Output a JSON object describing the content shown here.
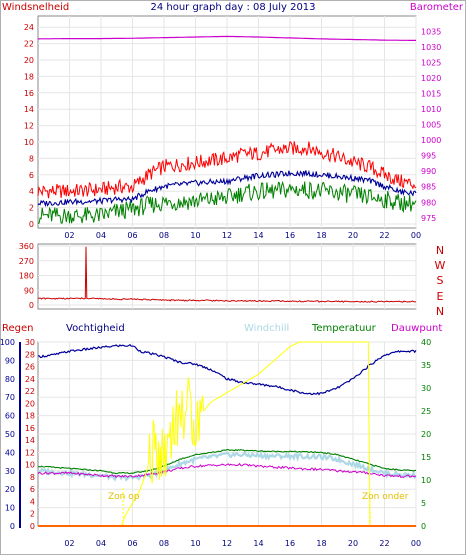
{
  "chart_data": [
    {
      "type": "line",
      "panel": "wind-and-barometer",
      "title": "24 hour graph day : 08 July 2013",
      "left_axis_label": "Windsnelheid",
      "right_axis_label": "Barometer",
      "hour_labels": [
        "02",
        "04",
        "06",
        "08",
        "10",
        "12",
        "14",
        "16",
        "18",
        "20",
        "22",
        "00"
      ],
      "left_ylim": [
        0,
        25
      ],
      "left_ticks": [
        0,
        2,
        4,
        6,
        8,
        10,
        12,
        14,
        16,
        18,
        20,
        22,
        24
      ],
      "right_ylim": [
        973,
        1039
      ],
      "right_ticks": [
        975,
        980,
        985,
        990,
        995,
        1000,
        1005,
        1010,
        1015,
        1020,
        1025,
        1030,
        1035
      ],
      "colors": {
        "gust": "#ff0000",
        "avg": "#000099",
        "min": "#008000",
        "baro": "#cc00cc",
        "axis_left": "#cc0000",
        "axis_right": "#cc00cc",
        "title": "#000080"
      },
      "series": [
        {
          "key": "gust",
          "x": [
            0,
            2,
            4,
            5,
            6,
            7,
            8,
            10,
            12,
            13,
            14,
            15,
            16,
            17,
            18,
            19,
            20,
            21,
            22,
            23,
            24
          ],
          "values": [
            4,
            4,
            4.2,
            4.5,
            4.5,
            6,
            7,
            7.5,
            8,
            8.5,
            8.6,
            9,
            9.2,
            9.3,
            8.8,
            8.2,
            7.5,
            7,
            6,
            5.2,
            4.8
          ]
        },
        {
          "key": "avg",
          "x": [
            0,
            2,
            4,
            5,
            6,
            7,
            8,
            10,
            12,
            13,
            14,
            15,
            16,
            17,
            18,
            19,
            20,
            21,
            22,
            23,
            24
          ],
          "values": [
            2.5,
            2.7,
            2.8,
            3,
            3,
            4,
            4.6,
            5,
            5.2,
            5.6,
            5.9,
            6,
            6.2,
            6.2,
            6,
            5.8,
            5.6,
            5.3,
            4.6,
            3.9,
            3.7
          ]
        },
        {
          "key": "min",
          "x": [
            0,
            2,
            4,
            5,
            6,
            7,
            8,
            10,
            12,
            13,
            14,
            15,
            16,
            17,
            18,
            19,
            20,
            21,
            22,
            23,
            24
          ],
          "values": [
            1,
            1,
            1,
            1.5,
            1.8,
            2.3,
            2.6,
            2.8,
            3.2,
            3.8,
            3.9,
            4,
            4.2,
            4.2,
            4,
            3.8,
            3.6,
            3.3,
            3,
            2.6,
            2.5
          ]
        },
        {
          "key": "baro",
          "x": [
            0,
            2,
            4,
            6,
            8,
            10,
            12,
            14,
            16,
            18,
            20,
            22,
            24
          ],
          "values": [
            1032.6,
            1032.7,
            1032.7,
            1032.8,
            1033,
            1033.2,
            1033.4,
            1033.2,
            1032.9,
            1032.6,
            1032.4,
            1032.2,
            1032.1
          ]
        }
      ]
    },
    {
      "type": "line",
      "panel": "wind-direction",
      "hour_labels": [
        "02",
        "04",
        "06",
        "08",
        "10",
        "12",
        "14",
        "16",
        "18",
        "20",
        "22",
        "00"
      ],
      "ylim": [
        0,
        360
      ],
      "ticks": [
        0,
        90,
        180,
        270,
        360
      ],
      "compass_labels": [
        "N",
        "W",
        "S",
        "E",
        "N"
      ],
      "colors": {
        "line": "#cc0000",
        "axis": "#cc0000"
      },
      "x": [
        0,
        1,
        2,
        3,
        3.05,
        3.1,
        4,
        5,
        6,
        7,
        8,
        9,
        10,
        11,
        12,
        13,
        14,
        15,
        16,
        17,
        18,
        19,
        20,
        21,
        22,
        23,
        24
      ],
      "values": [
        40,
        40,
        40,
        40,
        355,
        40,
        38,
        36,
        35,
        33,
        30,
        28,
        28,
        27,
        26,
        25,
        24,
        24,
        23,
        22,
        22,
        21,
        20,
        20,
        19,
        20,
        20
      ]
    },
    {
      "type": "line",
      "panel": "rain-humidity-temperature",
      "hour_labels": [
        "02",
        "04",
        "06",
        "08",
        "10",
        "12",
        "14",
        "16",
        "18",
        "20",
        "22",
        "00"
      ],
      "labels": {
        "rain": "Regen",
        "humidity": "Vochtigheid",
        "windchill": "Windchill",
        "temperature": "Temperatuur",
        "dewpoint": "Dauwpunt",
        "sunrise": "Zon op",
        "sunset": "Zon onder"
      },
      "humidity_ylim": [
        0,
        100
      ],
      "humidity_ticks": [
        0,
        10,
        20,
        30,
        40,
        50,
        60,
        70,
        80,
        90,
        100
      ],
      "rain_ylim": [
        0,
        30
      ],
      "rain_ticks": [
        0,
        2,
        4,
        6,
        8,
        10,
        12,
        14,
        16,
        18,
        20,
        22,
        24,
        26,
        28,
        30
      ],
      "temp_ylim": [
        0,
        40
      ],
      "temp_ticks": [
        0,
        5,
        10,
        15,
        20,
        25,
        30,
        35,
        40
      ],
      "colors": {
        "rain": "#ff6600",
        "humidity": "#000099",
        "windchill": "#add8e6",
        "temperature": "#008000",
        "dewpoint": "#cc00cc",
        "sun": "#ffff00",
        "axis_hum": "#000099",
        "axis_rain": "#cc0000",
        "axis_temp": "#008000",
        "sun_label": "#e0c000"
      },
      "sunrise_hour": 5.4,
      "sunset_hour": 21.05,
      "series": [
        {
          "key": "humidity",
          "x": [
            0,
            1,
            2,
            3,
            4,
            5,
            6,
            6.5,
            7,
            8,
            9,
            10,
            11,
            12,
            13,
            14,
            15,
            16,
            17,
            18,
            19,
            20,
            21,
            22,
            23,
            24
          ],
          "values": [
            92,
            93,
            95,
            96,
            97,
            98,
            98,
            95,
            94,
            92,
            89,
            88,
            85,
            80,
            78,
            77,
            76,
            74,
            72,
            72,
            75,
            80,
            87,
            93,
            95,
            95
          ]
        },
        {
          "key": "temperature",
          "x": [
            0,
            2,
            4,
            5,
            6,
            7,
            8,
            9,
            10,
            11,
            12,
            13,
            14,
            15,
            16,
            17,
            18,
            19,
            20,
            21,
            22,
            23,
            24
          ],
          "values": [
            13,
            12.5,
            12,
            11.5,
            11.5,
            12,
            13,
            14.5,
            15.5,
            16,
            16.5,
            16.5,
            16.3,
            16.2,
            16.2,
            16.1,
            16,
            15.5,
            14.5,
            13.5,
            12.5,
            12.2,
            12
          ]
        },
        {
          "key": "windchill",
          "x": [
            0,
            2,
            4,
            5,
            6,
            7,
            8,
            9,
            10,
            11,
            12,
            13,
            14,
            15,
            16,
            17,
            18,
            19,
            20,
            21,
            22,
            23,
            24
          ],
          "values": [
            12,
            11.5,
            11,
            10.5,
            10.5,
            11,
            12,
            13.5,
            14.5,
            15,
            15.5,
            15.5,
            15.3,
            15.2,
            15.2,
            15.1,
            15,
            14.5,
            13.5,
            12.5,
            11.5,
            11.2,
            11
          ]
        },
        {
          "key": "dewpoint",
          "x": [
            0,
            2,
            4,
            5,
            6,
            7,
            8,
            9,
            10,
            11,
            12,
            13,
            14,
            15,
            16,
            17,
            18,
            19,
            20,
            21,
            22,
            23,
            24
          ],
          "values": [
            11.5,
            11.5,
            11,
            10.8,
            10.8,
            11.2,
            11.8,
            12.5,
            13,
            13.2,
            13.3,
            13.3,
            13,
            12.8,
            12.6,
            12.4,
            12.3,
            12,
            11.8,
            11.5,
            11,
            10.8,
            10.8
          ]
        },
        {
          "key": "sun",
          "x": [
            0,
            5.3,
            5.5,
            6,
            6.5,
            7,
            7.5,
            8,
            8.5,
            9,
            9.5,
            10,
            11,
            12,
            13,
            14,
            15,
            16,
            16.6,
            21,
            21.05,
            24
          ],
          "values": [
            0,
            0,
            2,
            5,
            8,
            13,
            18,
            15,
            22,
            24,
            26,
            23,
            27,
            29,
            31,
            33,
            36,
            39,
            40,
            40,
            0,
            0
          ]
        },
        {
          "key": "rain",
          "x": [
            0,
            24
          ],
          "values": [
            0,
            0
          ]
        }
      ]
    }
  ]
}
